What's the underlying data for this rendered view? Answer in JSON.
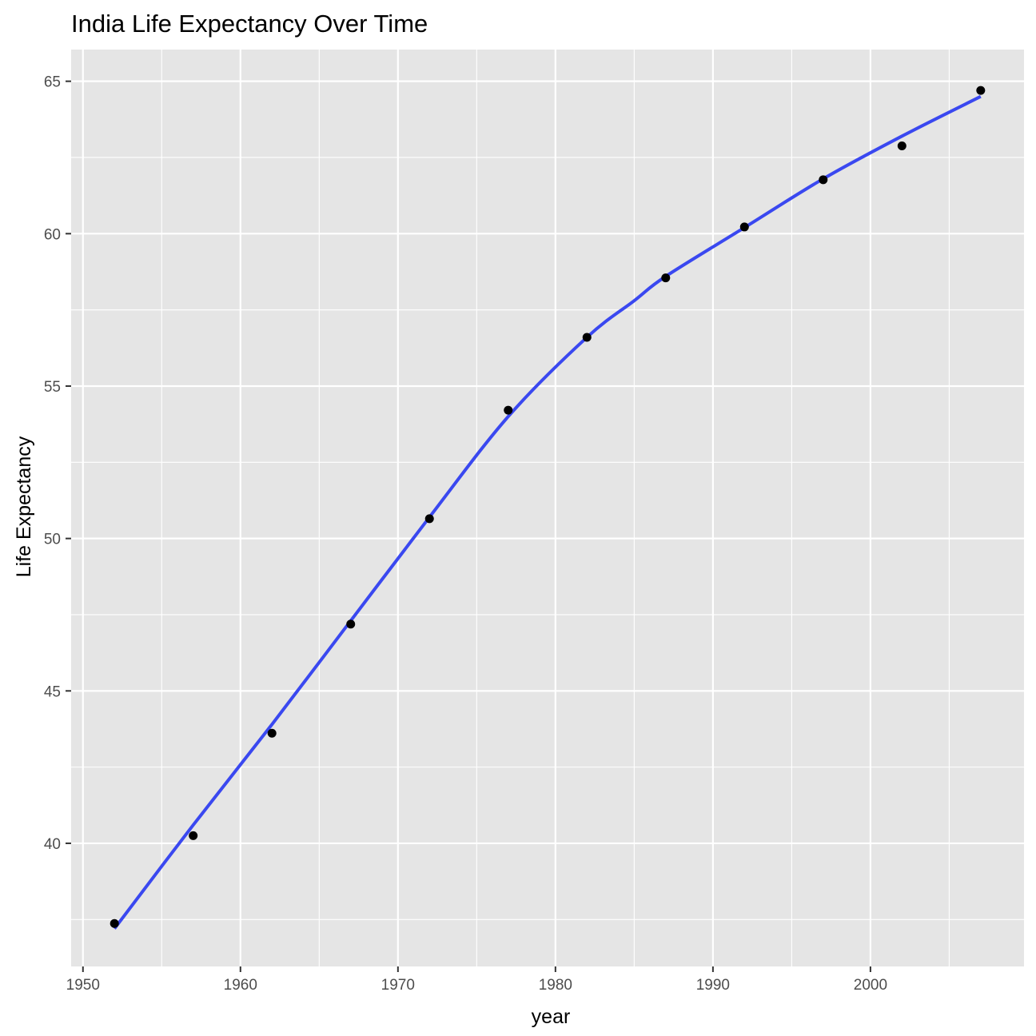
{
  "chart_data": {
    "type": "scatter",
    "title": "India Life Expectancy Over Time",
    "xlabel": "year",
    "ylabel": "Life Expectancy",
    "xlim": [
      1949.25,
      2009.75
    ],
    "ylim": [
      35.96,
      66.04
    ],
    "x_ticks": [
      1950,
      1960,
      1970,
      1980,
      1990,
      2000
    ],
    "y_ticks": [
      40,
      45,
      50,
      55,
      60,
      65
    ],
    "x_minor_ticks": [
      1955,
      1965,
      1975,
      1985,
      1995,
      2005
    ],
    "y_minor_ticks": [
      37.5,
      42.5,
      47.5,
      52.5,
      57.5,
      62.5
    ],
    "grid": true,
    "legend": "none",
    "colors": {
      "panel_background": "#e5e5e5",
      "grid": "#ffffff",
      "points": "#000000",
      "smooth_line": "#3a48f0"
    },
    "series": [
      {
        "kind": "points",
        "x": [
          1952,
          1957,
          1962,
          1967,
          1972,
          1977,
          1982,
          1987,
          1992,
          1997,
          2002,
          2007
        ],
        "y": [
          37.37,
          40.25,
          43.61,
          47.19,
          50.65,
          54.21,
          56.6,
          58.55,
          60.22,
          61.77,
          62.88,
          64.7
        ]
      },
      {
        "kind": "smooth",
        "x": [
          1952,
          1957,
          1962,
          1967,
          1972,
          1977,
          1982,
          1985,
          1987,
          1992,
          1997,
          2002,
          2007
        ],
        "y": [
          37.2,
          40.6,
          43.9,
          47.3,
          50.7,
          54.0,
          56.6,
          57.8,
          58.6,
          60.2,
          61.8,
          63.2,
          64.5
        ]
      }
    ]
  }
}
